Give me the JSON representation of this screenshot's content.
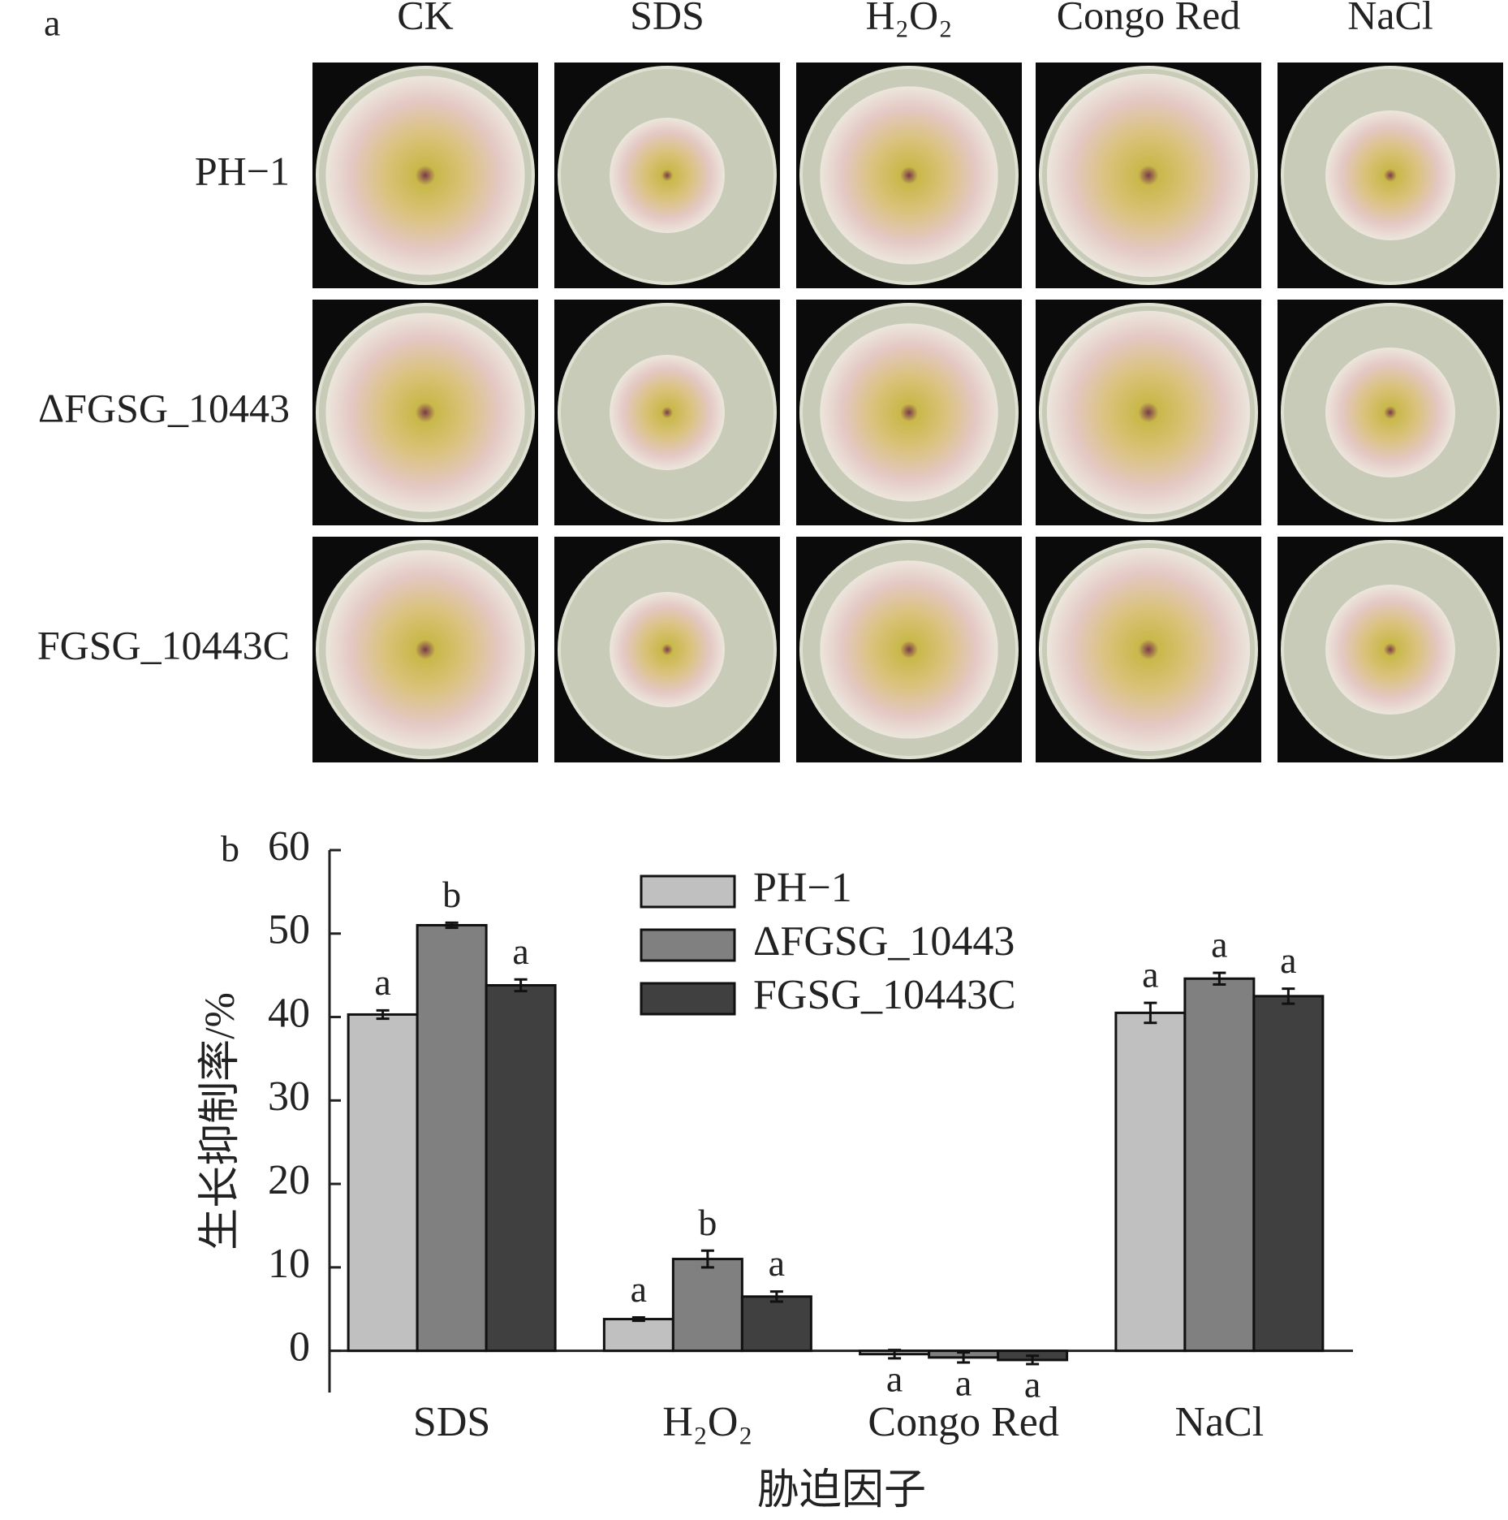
{
  "panel_a": {
    "label": "a",
    "columns": [
      "CK",
      "SDS",
      "H₂O₂",
      "Congo Red",
      "NaCl"
    ],
    "rows": [
      "PH−1",
      "ΔFGSG_10443",
      "FGSG_10443C"
    ]
  },
  "chart_data": {
    "type": "bar",
    "panel_label": "b",
    "y_label": "生长抑制率/%",
    "x_label": "胁迫因子",
    "categories": [
      "SDS",
      "H₂O₂",
      "Congo Red",
      "NaCl"
    ],
    "series": [
      {
        "name": "PH−1",
        "color": "#c0c0c0",
        "values": [
          40.3,
          3.8,
          -0.4,
          40.5
        ],
        "errors": [
          0.5,
          0.2,
          0.5,
          1.2
        ],
        "letters": [
          "a",
          "a",
          "a",
          "a"
        ]
      },
      {
        "name": "ΔFGSG_10443",
        "color": "#808080",
        "values": [
          51.0,
          11.0,
          -0.8,
          44.6
        ],
        "errors": [
          0.3,
          1.0,
          0.6,
          0.7
        ],
        "letters": [
          "b",
          "b",
          "a",
          "a"
        ]
      },
      {
        "name": "FGSG_10443C",
        "color": "#404040",
        "values": [
          43.8,
          6.5,
          -1.1,
          42.5
        ],
        "errors": [
          0.7,
          0.6,
          0.5,
          0.9
        ],
        "letters": [
          "a",
          "a",
          "a",
          "a"
        ]
      }
    ],
    "ylim": [
      -5,
      60
    ],
    "yticks": [
      0,
      10,
      20,
      30,
      40,
      50,
      60
    ]
  }
}
